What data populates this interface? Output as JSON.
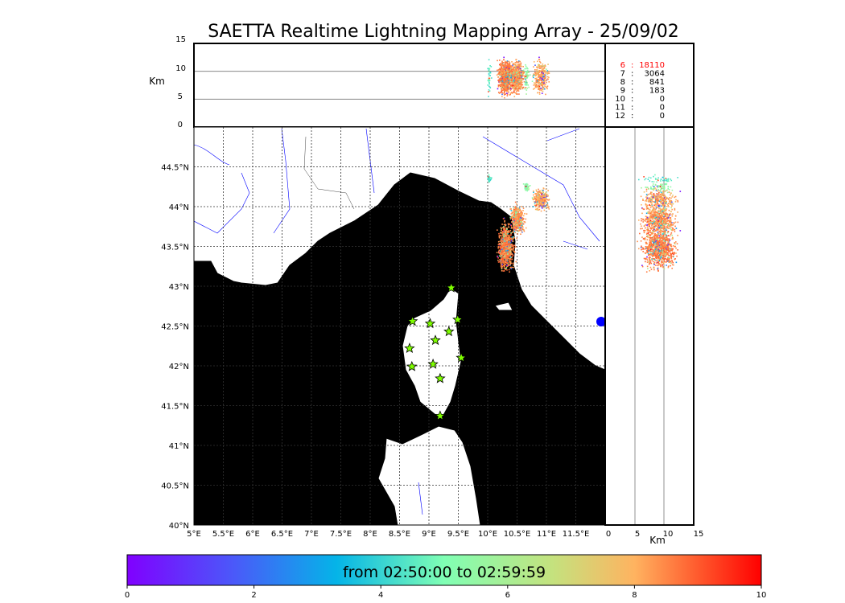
{
  "title": "SAETTA Realtime Lightning Mapping Array - 25/09/02",
  "altitude_axis": {
    "label": "Km",
    "ticks": [
      "0",
      "5",
      "10",
      "15"
    ],
    "range": [
      0,
      15
    ]
  },
  "lon_ticks": [
    "5°E",
    "5.5°E",
    "6°E",
    "6.5°E",
    "7°E",
    "7.5°E",
    "8°E",
    "8.5°E",
    "9°E",
    "9.5°E",
    "10°E",
    "10.5°E",
    "11°E",
    "11.5°E"
  ],
  "lat_ticks": [
    "40°N",
    "40.5°N",
    "41°N",
    "41.5°N",
    "42°N",
    "42.5°N",
    "43°N",
    "43.5°N",
    "44°N",
    "44.5°N"
  ],
  "map_extent": {
    "lon": [
      5,
      12
    ],
    "lat": [
      40,
      44.95
    ]
  },
  "side_axis": {
    "label": "Km",
    "ticks": [
      "0",
      "5",
      "10",
      "15"
    ],
    "range": [
      0,
      15
    ]
  },
  "station_counts": [
    {
      "stations": "6",
      "count": "18110",
      "highlight": true
    },
    {
      "stations": "7",
      "count": "3064",
      "highlight": false
    },
    {
      "stations": "8",
      "count": "841",
      "highlight": false
    },
    {
      "stations": "9",
      "count": "183",
      "highlight": false
    },
    {
      "stations": "10",
      "count": "0",
      "highlight": false
    },
    {
      "stations": "11",
      "count": "0",
      "highlight": false
    },
    {
      "stations": "12",
      "count": "0",
      "highlight": false
    }
  ],
  "stations": [
    {
      "lon": 9.38,
      "lat": 42.98
    },
    {
      "lon": 8.72,
      "lat": 42.56
    },
    {
      "lon": 9.02,
      "lat": 42.53
    },
    {
      "lon": 9.49,
      "lat": 42.58
    },
    {
      "lon": 9.34,
      "lat": 42.43
    },
    {
      "lon": 9.11,
      "lat": 42.32
    },
    {
      "lon": 8.67,
      "lat": 42.22
    },
    {
      "lon": 9.55,
      "lat": 42.1
    },
    {
      "lon": 9.07,
      "lat": 42.02
    },
    {
      "lon": 8.71,
      "lat": 41.99
    },
    {
      "lon": 9.19,
      "lat": 41.84
    },
    {
      "lon": 9.19,
      "lat": 41.37
    }
  ],
  "lightning_clusters": [
    {
      "lon": 10.3,
      "lat": 43.5,
      "dlon": 0.12,
      "dlat": 0.25,
      "n": 900,
      "t": 8.6
    },
    {
      "lon": 10.5,
      "lat": 43.85,
      "dlon": 0.1,
      "dlat": 0.15,
      "n": 500,
      "t": 8.4
    },
    {
      "lon": 10.9,
      "lat": 44.1,
      "dlon": 0.12,
      "dlat": 0.12,
      "n": 300,
      "t": 8.2
    },
    {
      "lon": 10.65,
      "lat": 44.25,
      "dlon": 0.04,
      "dlat": 0.05,
      "n": 60,
      "t": 5.5
    },
    {
      "lon": 10.02,
      "lat": 44.35,
      "dlon": 0.03,
      "dlat": 0.04,
      "n": 40,
      "t": 4.5
    }
  ],
  "colorbar": {
    "label": "from 02:50:00 to 02:59:59",
    "ticks": [
      "0",
      "2",
      "4",
      "6",
      "8",
      "10"
    ],
    "range": [
      0,
      10
    ]
  },
  "colors": {
    "sea": "#b8ecfc",
    "land": "#ffffff",
    "rivers": "#0000ff",
    "station": "#7fff00",
    "highlight_text": "#ff0000"
  }
}
